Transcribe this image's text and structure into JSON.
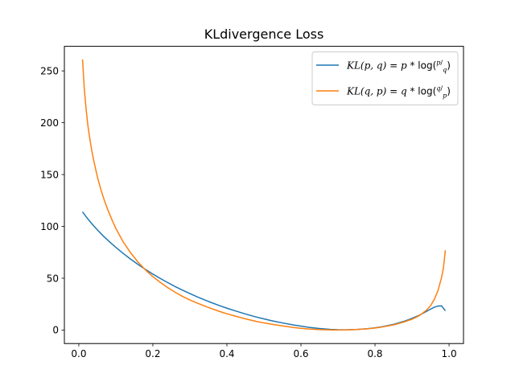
{
  "chart_data": {
    "type": "line",
    "title": "KLdivergence Loss",
    "xlabel": "",
    "ylabel": "",
    "xlim": [
      -0.039,
      1.039
    ],
    "ylim": [
      -13.0,
      273.7
    ],
    "x_ticks": [
      0.0,
      0.2,
      0.4,
      0.6,
      0.8,
      1.0
    ],
    "x_tick_labels": [
      "0.0",
      "0.2",
      "0.4",
      "0.6",
      "0.8",
      "1.0"
    ],
    "y_ticks": [
      0,
      50,
      100,
      150,
      200,
      250
    ],
    "y_tick_labels": [
      "0",
      "50",
      "100",
      "150",
      "200",
      "250"
    ],
    "grid": false,
    "legend_position": "top-right",
    "series": [
      {
        "name": "KL(p, q) = p * log(p/q)",
        "legend": {
          "lhs": "KL(p, q) = p",
          "op": " * log(",
          "num": "p",
          "den": "q",
          "close": ")"
        },
        "color": "#1f77b4",
        "x": [
          0.01,
          0.02,
          0.03,
          0.04,
          0.05,
          0.06,
          0.07,
          0.08,
          0.09,
          0.1,
          0.12,
          0.14,
          0.16,
          0.18,
          0.2,
          0.22,
          0.24,
          0.26,
          0.28,
          0.3,
          0.32,
          0.35,
          0.38,
          0.4,
          0.42,
          0.45,
          0.48,
          0.5,
          0.52,
          0.55,
          0.58,
          0.6,
          0.62,
          0.65,
          0.68,
          0.7,
          0.72,
          0.75,
          0.78,
          0.8,
          0.82,
          0.85,
          0.88,
          0.9,
          0.92,
          0.94,
          0.95,
          0.96,
          0.97,
          0.98,
          0.99
        ],
        "y": [
          114.0,
          109.2,
          104.8,
          100.6,
          96.7,
          93.0,
          89.4,
          86.1,
          82.9,
          79.8,
          73.9,
          68.4,
          63.3,
          58.5,
          54.0,
          49.8,
          45.8,
          42.0,
          38.5,
          35.2,
          32.0,
          27.6,
          23.6,
          21.1,
          18.8,
          15.5,
          12.5,
          10.8,
          9.1,
          6.9,
          4.9,
          3.8,
          2.7,
          1.5,
          0.6,
          0.3,
          0.2,
          0.5,
          1.3,
          2.2,
          3.3,
          5.5,
          8.6,
          11.3,
          14.4,
          18.2,
          20.2,
          22.0,
          23.2,
          23.3,
          18.5
        ]
      },
      {
        "name": "KL(q, p) = q * log(q/p)",
        "legend": {
          "lhs": "KL(q, p) = q",
          "op": " * log(",
          "num": "q",
          "den": "p",
          "close": ")"
        },
        "color": "#ff7f0e",
        "x": [
          0.01,
          0.015,
          0.02,
          0.025,
          0.03,
          0.035,
          0.04,
          0.05,
          0.06,
          0.07,
          0.08,
          0.09,
          0.1,
          0.12,
          0.14,
          0.16,
          0.18,
          0.2,
          0.22,
          0.24,
          0.26,
          0.28,
          0.3,
          0.32,
          0.35,
          0.38,
          0.4,
          0.42,
          0.45,
          0.48,
          0.5,
          0.52,
          0.55,
          0.58,
          0.6,
          0.62,
          0.65,
          0.68,
          0.7,
          0.72,
          0.75,
          0.78,
          0.8,
          0.82,
          0.85,
          0.88,
          0.9,
          0.92,
          0.94,
          0.95,
          0.96,
          0.97,
          0.98,
          0.985,
          0.99
        ],
        "y": [
          261.0,
          232.0,
          212.0,
          196.0,
          184.0,
          173.0,
          164.0,
          148.0,
          135.0,
          124.0,
          114.5,
          106.0,
          98.0,
          85.0,
          74.5,
          65.5,
          58.0,
          51.5,
          46.0,
          41.0,
          36.5,
          32.5,
          29.0,
          26.0,
          21.8,
          18.0,
          15.7,
          13.7,
          10.8,
          8.3,
          6.9,
          5.7,
          4.0,
          2.5,
          1.7,
          1.0,
          0.4,
          0.1,
          0.05,
          0.1,
          0.5,
          1.2,
          2.0,
          3.0,
          5.0,
          8.0,
          10.5,
          14.0,
          19.5,
          23.5,
          29.5,
          38.0,
          51.0,
          60.5,
          77.0
        ]
      }
    ]
  }
}
